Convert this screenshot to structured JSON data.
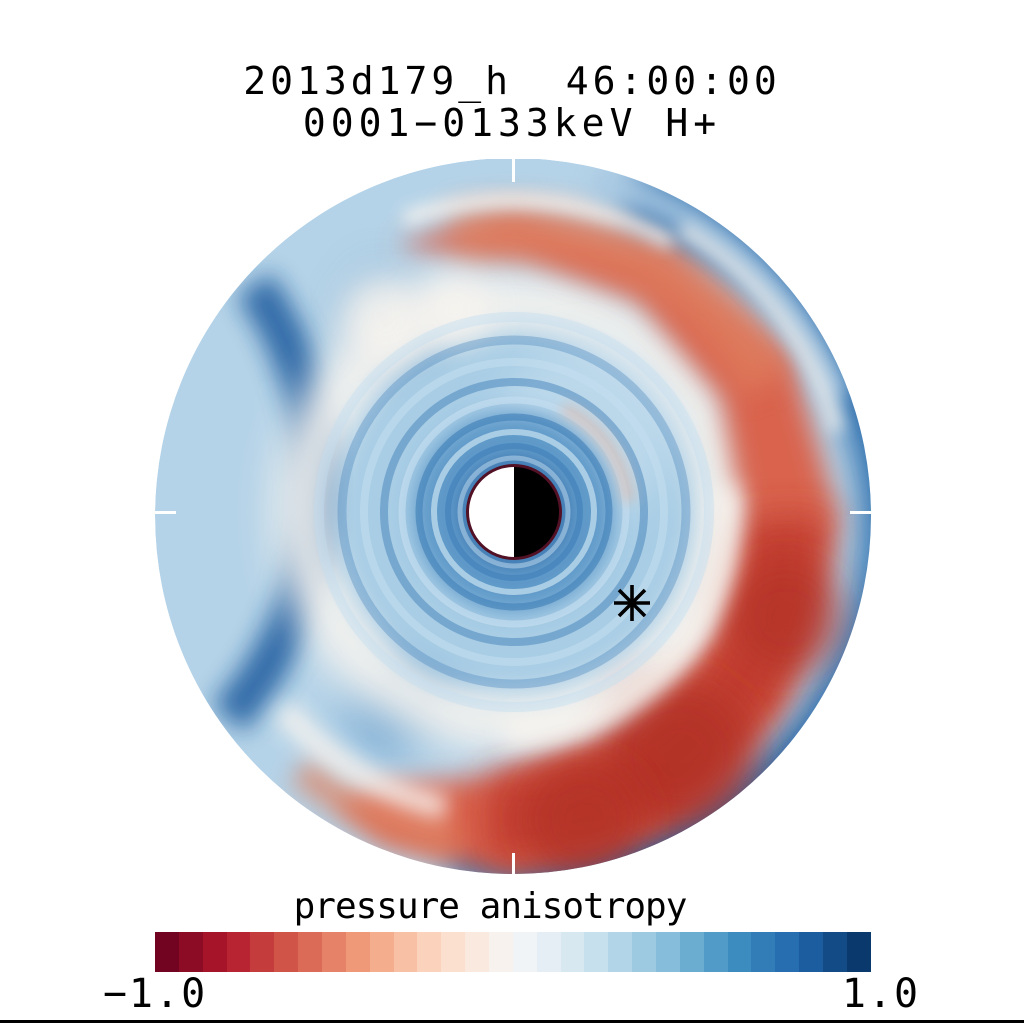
{
  "header": {
    "title_line1": "2013d179_h  46:00:00",
    "title_line2": "0001−0133keV H+"
  },
  "colorbar": {
    "label": "pressure anisotropy",
    "min_label": "−1.0",
    "max_label": "1.0",
    "segment_colors": [
      "#730421",
      "#8c0c25",
      "#a51429",
      "#b82431",
      "#c43c3c",
      "#d05447",
      "#db6b56",
      "#e58267",
      "#ef9979",
      "#f5ae8d",
      "#f8c0a4",
      "#fbd2bb",
      "#fce0cf",
      "#fae9df",
      "#f8f2ef",
      "#f1f4f6",
      "#e4eef4",
      "#d7e8f1",
      "#c6e0ed",
      "#b2d5e7",
      "#9dcae1",
      "#85bdda",
      "#6bacd1",
      "#509bc8",
      "#3d8cbf",
      "#327cb7",
      "#276eb0",
      "#1c5d9f",
      "#134b86",
      "#0a396e"
    ]
  },
  "chart_data": {
    "type": "heatmap",
    "title": "2013d179_h  46:00:00",
    "subtitle": "0001−0133keV H+",
    "colorbar_label": "pressure anisotropy",
    "value_range": [
      -1.0,
      1.0
    ],
    "colorbar_tick_labels": [
      "−1.0",
      "1.0"
    ],
    "colormap": "diverging RdBu: −1 dark red, 0 white, +1 dark blue; ~30 discrete steps",
    "projection": "equatorial-plane circular map centered on planet; planet drawn half white (dayside, left) and half black (nightside, right); white fiducial ticks at 12, 3, 6, 9 o'clock on the rim",
    "regions": [
      {
        "name": "outer rim crescent, ~6:30 to ~1 o'clock (left side)",
        "approx_value": 0.75
      },
      {
        "name": "spiral arm from upper-left tail over top and down right side to bottom",
        "approx_value": -0.55
      },
      {
        "name": "inner edge of arm / bottom-right core",
        "approx_value": -0.85
      },
      {
        "name": "arm tail wisp, upper left",
        "approx_value": -0.3
      },
      {
        "name": "second salmon tail, bottom-left",
        "approx_value": -0.35
      },
      {
        "name": "interior annulus around planet",
        "approx_value": 0.35
      },
      {
        "name": "thin white band separating interior from arm",
        "approx_value": 0.0
      },
      {
        "name": "light-blue strip between arm and rim, ~1 to 4 o'clock",
        "approx_value": 0.3
      },
      {
        "name": "concentric ripple rings near planet",
        "approx_value": 0.5
      }
    ],
    "marker": {
      "symbol": "asterisk",
      "location": "lower right of planet, inside light-blue interior annulus"
    }
  },
  "disk": {
    "colors": {
      "base": "#b5d3e8",
      "rim": "#2b6cab",
      "rim_dark": "#1e5b9e",
      "rim_inner": "#6ba0cd",
      "strip_blue": "#aac9e2",
      "white_band": "#f8f4ef",
      "interior_light": "#a8cde5",
      "interior_mid": "#5b97c8",
      "interior_core": "#447fb6",
      "interior_pale": "#cfe3f1",
      "arm_red": "#d9634d",
      "arm_salmon": "#e08463",
      "arm_dark_red": "#c03a2f",
      "arm_darkest": "#b23028",
      "ripple_dark": "#4382ba",
      "ripple_light": "#c3ddef",
      "mini_salmon": "#e7b49c",
      "planet_day": "#ffffff",
      "planet_night": "#000000",
      "planet_ring": "#521125",
      "tick": "#ffffff",
      "marker": "#000000",
      "frame": "#000000"
    }
  }
}
